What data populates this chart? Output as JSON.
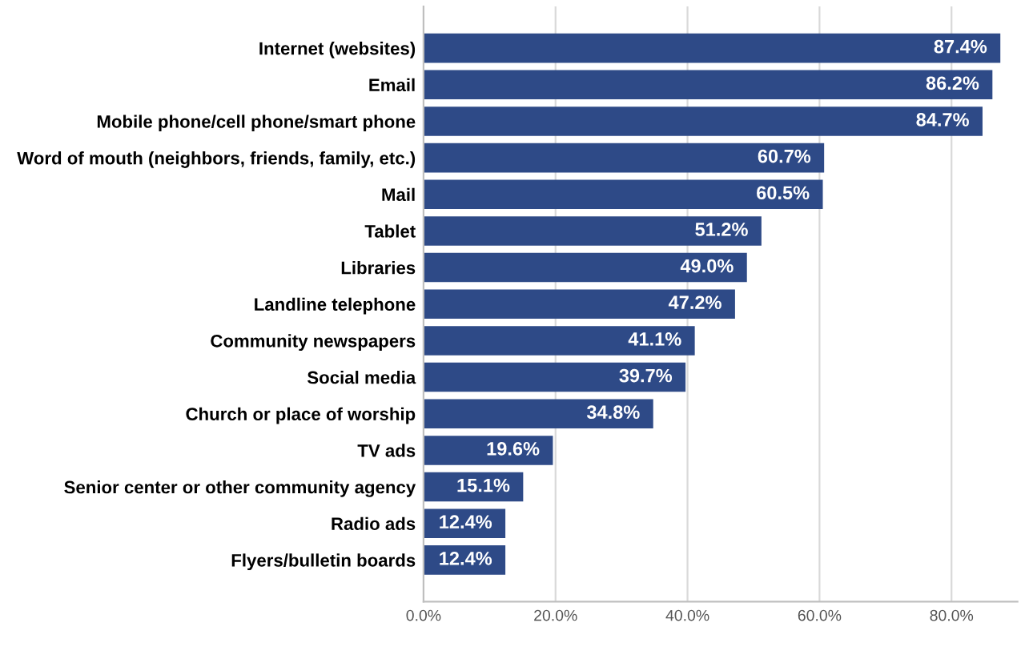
{
  "chart_data": {
    "type": "bar",
    "orientation": "horizontal",
    "categories": [
      "Internet (websites)",
      "Email",
      "Mobile phone/cell phone/smart phone",
      "Word of mouth (neighbors, friends, family, etc.)",
      "Mail",
      "Tablet",
      "Libraries",
      "Landline telephone",
      "Community newspapers",
      "Social media",
      "Church or place of worship",
      "TV ads",
      "Senior center or other community agency",
      "Radio ads",
      "Flyers/bulletin boards"
    ],
    "values": [
      87.4,
      86.2,
      84.7,
      60.7,
      60.5,
      51.2,
      49.0,
      47.2,
      41.1,
      39.7,
      34.8,
      19.6,
      15.1,
      12.4,
      12.4
    ],
    "value_labels": [
      "87.4%",
      "86.2%",
      "84.7%",
      "60.7%",
      "60.5%",
      "51.2%",
      "49.0%",
      "47.2%",
      "41.1%",
      "39.7%",
      "34.8%",
      "19.6%",
      "15.1%",
      "12.4%",
      "12.4%"
    ],
    "color": "#2e4a87",
    "xlim": [
      0,
      90
    ],
    "xticks": [
      {
        "value": 0,
        "label": "0.0%"
      },
      {
        "value": 20,
        "label": "20.0%"
      },
      {
        "value": 40,
        "label": "40.0%"
      },
      {
        "value": 60,
        "label": "60.0%"
      },
      {
        "value": 80,
        "label": "80.0%"
      }
    ],
    "grid": "x"
  }
}
